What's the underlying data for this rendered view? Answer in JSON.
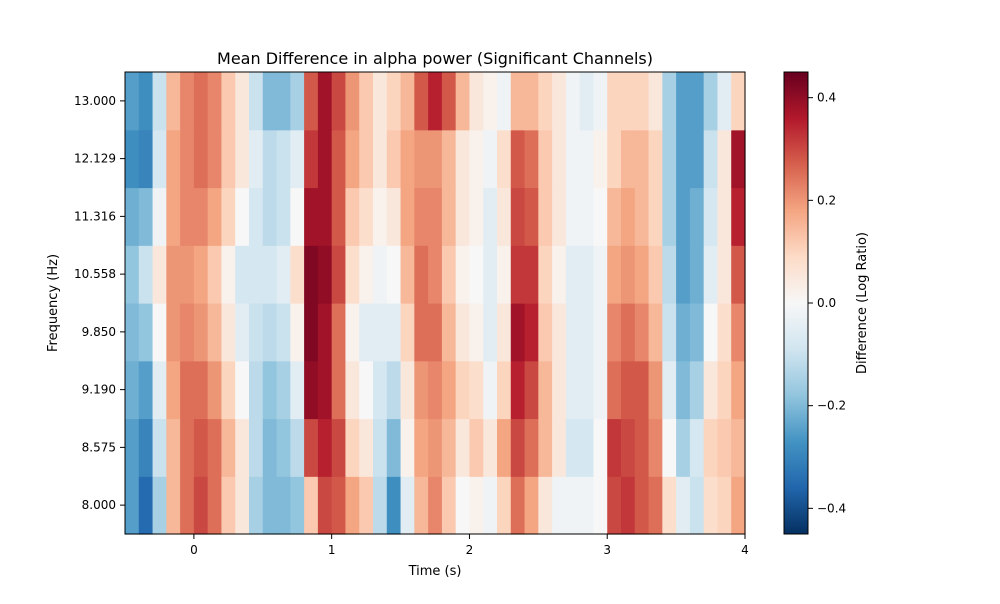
{
  "chart_data": {
    "type": "heatmap",
    "title": "Mean Difference in alpha power (Significant Channels)",
    "xlabel": "Time (s)",
    "ylabel": "Frequency (Hz)",
    "xlim": [
      -0.5,
      4.0
    ],
    "xticks": [
      0,
      1,
      2,
      3,
      4
    ],
    "xtick_labels": [
      "0",
      "1",
      "2",
      "3",
      "4"
    ],
    "ytick_labels": [
      "8.000",
      "8.575",
      "9.190",
      "9.850",
      "10.558",
      "11.316",
      "12.129",
      "13.000"
    ],
    "frequencies": [
      8.0,
      8.575,
      9.19,
      9.85,
      10.558,
      11.316,
      12.129,
      13.0
    ],
    "colorbar": {
      "label": "Difference (Log Ratio)",
      "vmin": -0.45,
      "vmax": 0.45,
      "ticks": [
        -0.4,
        -0.2,
        0.0,
        0.2,
        0.4
      ],
      "tick_labels": [
        "−0.4",
        "−0.2",
        "0.0",
        "0.2",
        "0.4"
      ],
      "colormap": "RdBu_r"
    },
    "time_step": 0.1,
    "rows": [
      [
        -0.25,
        -0.35,
        -0.15,
        0.15,
        0.25,
        0.3,
        0.25,
        0.12,
        0.05,
        -0.15,
        -0.2,
        -0.2,
        -0.18,
        0.12,
        0.3,
        0.28,
        0.18,
        0.12,
        -0.12,
        -0.28,
        -0.05,
        0.15,
        0.22,
        0.12,
        0.0,
        0.02,
        -0.02,
        0.1,
        0.25,
        0.18,
        0.05,
        -0.02,
        -0.02,
        -0.02,
        0.0,
        0.3,
        0.32,
        0.28,
        0.25,
        0.08,
        -0.05,
        -0.1,
        0.08,
        0.1,
        0.18
      ],
      [
        -0.25,
        -0.3,
        -0.1,
        0.15,
        0.25,
        0.28,
        0.25,
        0.15,
        0.05,
        -0.12,
        -0.2,
        -0.18,
        -0.12,
        0.3,
        0.35,
        0.3,
        0.1,
        0.05,
        -0.1,
        -0.2,
        0.02,
        0.18,
        0.2,
        0.15,
        0.05,
        0.12,
        0.05,
        0.18,
        0.3,
        0.25,
        0.15,
        0.05,
        -0.08,
        -0.08,
        0.0,
        0.32,
        0.3,
        0.28,
        0.22,
        0.0,
        -0.15,
        -0.08,
        0.1,
        0.12,
        0.15
      ],
      [
        -0.22,
        -0.25,
        -0.05,
        0.18,
        0.25,
        0.25,
        0.2,
        0.1,
        0.0,
        -0.12,
        -0.18,
        -0.15,
        -0.05,
        0.4,
        0.38,
        0.25,
        0.05,
        0.0,
        -0.08,
        -0.12,
        0.05,
        0.2,
        0.22,
        0.18,
        0.1,
        0.08,
        -0.02,
        0.1,
        0.35,
        0.3,
        0.15,
        0.05,
        -0.05,
        -0.05,
        -0.02,
        0.25,
        0.28,
        0.28,
        0.2,
        -0.05,
        -0.2,
        -0.15,
        0.05,
        0.1,
        0.18
      ],
      [
        -0.2,
        -0.18,
        0.0,
        0.2,
        0.22,
        0.2,
        0.15,
        0.05,
        -0.05,
        -0.1,
        -0.12,
        -0.1,
        0.02,
        0.42,
        0.38,
        0.25,
        0.02,
        -0.05,
        -0.05,
        -0.05,
        0.1,
        0.25,
        0.25,
        0.15,
        0.05,
        0.02,
        -0.05,
        0.05,
        0.38,
        0.35,
        0.12,
        0.05,
        -0.05,
        -0.05,
        -0.02,
        0.22,
        0.25,
        0.22,
        0.15,
        -0.1,
        -0.22,
        -0.2,
        0.0,
        0.08,
        0.22
      ],
      [
        -0.18,
        -0.1,
        0.05,
        0.2,
        0.2,
        0.18,
        0.12,
        0.02,
        -0.08,
        -0.08,
        -0.08,
        -0.05,
        0.08,
        0.42,
        0.4,
        0.3,
        0.08,
        0.02,
        -0.02,
        0.0,
        0.15,
        0.25,
        0.22,
        0.12,
        0.02,
        0.0,
        -0.05,
        0.02,
        0.32,
        0.32,
        0.1,
        0.02,
        -0.05,
        -0.05,
        -0.02,
        0.18,
        0.2,
        0.18,
        0.12,
        -0.12,
        -0.25,
        -0.22,
        -0.05,
        0.05,
        0.28
      ],
      [
        -0.22,
        -0.2,
        -0.02,
        0.18,
        0.22,
        0.22,
        0.18,
        0.1,
        0.0,
        -0.08,
        -0.12,
        -0.1,
        0.0,
        0.38,
        0.38,
        0.28,
        0.12,
        0.08,
        0.02,
        0.05,
        0.18,
        0.22,
        0.22,
        0.15,
        0.05,
        0.02,
        -0.05,
        0.05,
        0.3,
        0.28,
        0.12,
        0.05,
        -0.02,
        -0.02,
        0.0,
        0.15,
        0.18,
        0.15,
        0.1,
        -0.15,
        -0.25,
        -0.22,
        -0.08,
        0.05,
        0.35
      ],
      [
        -0.28,
        -0.3,
        -0.08,
        0.18,
        0.22,
        0.25,
        0.22,
        0.12,
        0.05,
        -0.05,
        -0.12,
        -0.1,
        -0.05,
        0.32,
        0.38,
        0.28,
        0.18,
        0.12,
        0.05,
        0.12,
        0.18,
        0.2,
        0.2,
        0.15,
        0.05,
        0.02,
        -0.02,
        0.08,
        0.28,
        0.25,
        0.12,
        0.05,
        -0.02,
        -0.02,
        0.02,
        0.1,
        0.15,
        0.15,
        0.1,
        -0.15,
        -0.25,
        -0.25,
        -0.1,
        0.05,
        0.38
      ],
      [
        -0.25,
        -0.28,
        -0.1,
        0.15,
        0.22,
        0.25,
        0.22,
        0.12,
        0.05,
        -0.1,
        -0.2,
        -0.2,
        -0.15,
        0.28,
        0.38,
        0.3,
        0.2,
        0.12,
        0.05,
        0.1,
        0.15,
        0.28,
        0.35,
        0.28,
        0.15,
        0.05,
        0.02,
        -0.02,
        0.15,
        0.15,
        0.1,
        0.05,
        -0.02,
        -0.05,
        -0.02,
        0.1,
        0.1,
        0.1,
        0.05,
        -0.15,
        -0.25,
        -0.25,
        -0.15,
        -0.05,
        0.1
      ]
    ]
  }
}
